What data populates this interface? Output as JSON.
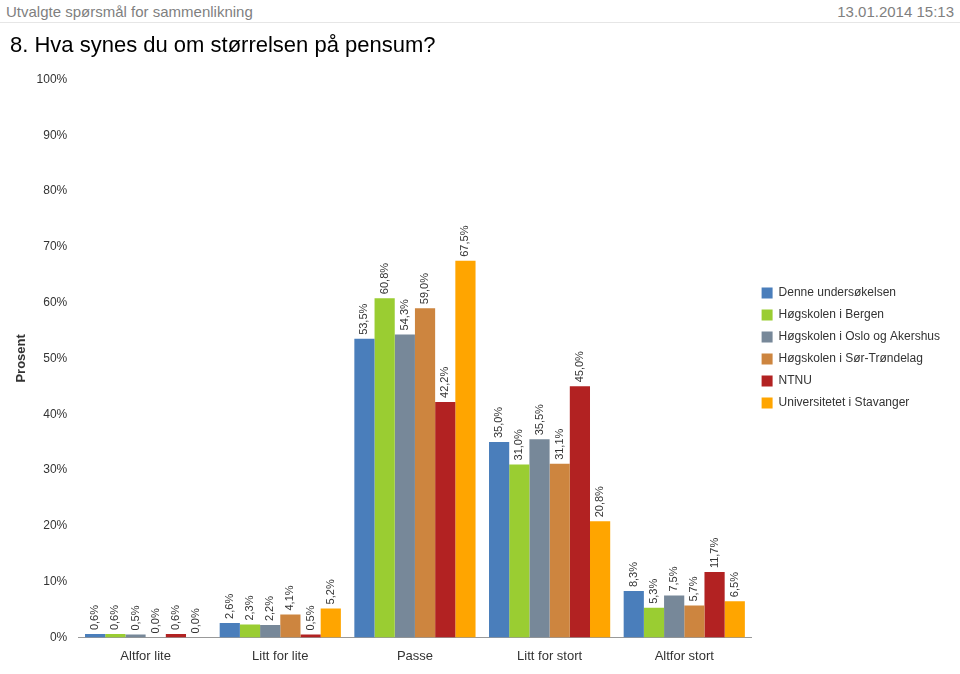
{
  "header": {
    "left": "Utvalgte spørsmål for sammenlikning",
    "right": "13.01.2014 15:13"
  },
  "chart_data": {
    "type": "bar",
    "title": "8. Hva synes du om størrelsen på pensum?",
    "y_label": "Prosent",
    "categories": [
      "Altfor lite",
      "Litt for lite",
      "Passe",
      "Litt for stort",
      "Altfor stort"
    ],
    "series": [
      {
        "name": "Denne undersøkelsen",
        "color": "#4a7ebb",
        "values": [
          0.6,
          2.6,
          53.5,
          35.0,
          8.3
        ],
        "value_labels": [
          "0,6%",
          "2,6%",
          "53,5%",
          "35,0%",
          "8,3%"
        ]
      },
      {
        "name": "Høgskolen i Bergen",
        "color": "#9acd32",
        "values": [
          0.6,
          2.3,
          60.8,
          31.0,
          5.3
        ],
        "value_labels": [
          "0,6%",
          "2,3%",
          "60,8%",
          "31,0%",
          "5,3%"
        ]
      },
      {
        "name": "Høgskolen i Oslo og Akershus",
        "color": "#778899",
        "values": [
          0.5,
          2.2,
          54.3,
          35.5,
          7.5
        ],
        "value_labels": [
          "0,5%",
          "2,2%",
          "54,3%",
          "35,5%",
          "7,5%"
        ]
      },
      {
        "name": "Høgskolen i Sør-Trøndelag",
        "color": "#cd853f",
        "values": [
          0.0,
          4.1,
          59.0,
          31.1,
          5.7
        ],
        "value_labels": [
          "0,0%",
          "4,1%",
          "59,0%",
          "31,1%",
          "5,7%"
        ]
      },
      {
        "name": "NTNU",
        "color": "#b22222",
        "values": [
          0.6,
          0.5,
          42.2,
          45.0,
          11.7
        ],
        "value_labels": [
          "0,6%",
          "0,5%",
          "42,2%",
          "45,0%",
          "11,7%"
        ]
      },
      {
        "name": "Universitetet i Stavanger",
        "color": "#ffa500",
        "values": [
          0.0,
          5.2,
          67.5,
          20.8,
          6.5
        ],
        "value_labels": [
          "0,0%",
          "5,2%",
          "67,5%",
          "20,8%",
          "6,5%"
        ]
      }
    ],
    "ylim": [
      0,
      100
    ],
    "yticks": [
      {
        "value": 0,
        "label": "0%"
      },
      {
        "value": 10,
        "label": "10%"
      },
      {
        "value": 20,
        "label": "20%"
      },
      {
        "value": 30,
        "label": "30%"
      },
      {
        "value": 40,
        "label": "40%"
      },
      {
        "value": 50,
        "label": "50%"
      },
      {
        "value": 60,
        "label": "60%"
      },
      {
        "value": 70,
        "label": "70%"
      },
      {
        "value": 80,
        "label": "80%"
      },
      {
        "value": 90,
        "label": "90%"
      },
      {
        "value": 100,
        "label": "100%"
      }
    ],
    "grid": false,
    "legend": "right",
    "data_labels": true
  }
}
